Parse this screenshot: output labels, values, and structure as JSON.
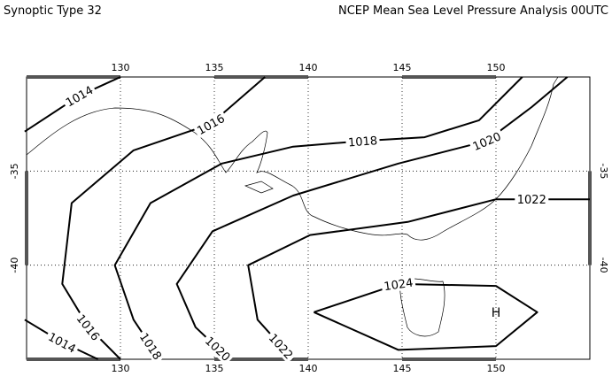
{
  "map": {
    "title_left": "Synoptic Type 32",
    "title_right": "NCEP Mean Sea Level Pressure Analysis 00UTC",
    "xlim": [
      125,
      155
    ],
    "ylim": [
      -45,
      -30
    ],
    "xticks": [
      130,
      135,
      140,
      145,
      150
    ],
    "yticks": [
      -35,
      -40
    ],
    "grid": true,
    "high_label": "H",
    "high": {
      "lon": 150,
      "lat": -42.5
    },
    "contours": [
      {
        "level": 1014,
        "lon": [
          124.9,
          127.8,
          130.0
        ],
        "lat": [
          -32.9,
          -31.0,
          -30.0
        ]
      },
      {
        "level": 1014,
        "lon": [
          124.9,
          126.9,
          128.8
        ],
        "lat": [
          -42.9,
          -44.1,
          -45.0
        ]
      },
      {
        "level": 1016,
        "lon": [
          137.7,
          134.8,
          130.7,
          127.4,
          126.9,
          128.3,
          130.0
        ],
        "lat": [
          -30.0,
          -32.5,
          -33.9,
          -36.7,
          -41.0,
          -43.3,
          -45.0
        ]
      },
      {
        "level": 1018,
        "lon": [
          151.4,
          149.1,
          146.2,
          142.9,
          139.2,
          135.4,
          131.6,
          129.7,
          130.7,
          132.1
        ],
        "lat": [
          -30.0,
          -32.3,
          -33.2,
          -33.4,
          -33.7,
          -34.6,
          -36.7,
          -40.0,
          -42.9,
          -45.0
        ]
      },
      {
        "level": 1020,
        "lon": [
          153.8,
          151.9,
          149.5,
          144.8,
          139.2,
          134.9,
          133.0,
          134.0,
          135.8
        ],
        "lat": [
          -30.0,
          -31.6,
          -33.4,
          -34.6,
          -36.3,
          -38.2,
          -41.0,
          -43.3,
          -45.0
        ]
      },
      {
        "level": 1022,
        "lon": [
          155.0,
          151.9,
          150.0,
          145.3,
          140.1,
          136.8,
          137.3,
          139.2
        ],
        "lat": [
          -36.5,
          -36.5,
          -36.5,
          -37.7,
          -38.4,
          -40.0,
          -42.9,
          -45.0
        ]
      },
      {
        "level": 1024,
        "lon": [
          140.3,
          144.8,
          150.0,
          152.2,
          150.0,
          144.8,
          140.3
        ],
        "lat": [
          -42.5,
          -41.0,
          -41.1,
          -42.5,
          -44.3,
          -44.5,
          -42.5
        ]
      }
    ]
  }
}
